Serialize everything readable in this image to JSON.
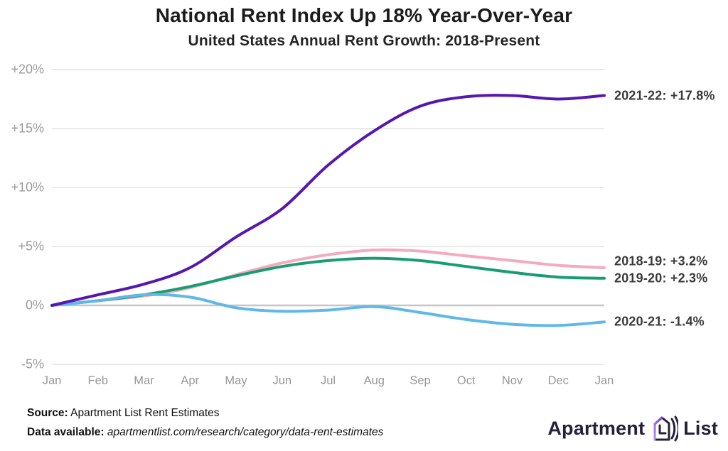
{
  "title": "National Rent Index Up 18% Year-Over-Year",
  "subtitle": "United States Annual Rent Growth: 2018-Present",
  "chart_data": {
    "type": "line",
    "x_tick_labels": [
      "Jan",
      "Feb",
      "Mar",
      "Apr",
      "May",
      "Jun",
      "Jul",
      "Aug",
      "Sep",
      "Oct",
      "Nov",
      "Dec",
      "Jan"
    ],
    "y_tick_labels": [
      "+20%",
      "+15%",
      "+10%",
      "+5%",
      "0%",
      "-5%"
    ],
    "y_tick_values": [
      20,
      15,
      10,
      5,
      0,
      -5
    ],
    "ylim": [
      -5,
      20
    ],
    "grid": "horizontal",
    "legend_position": "right-of-line-ends",
    "series": [
      {
        "name": "2018-19",
        "label": "2018-19: +3.2%",
        "final_value": 3.2,
        "color": "#f3abbe",
        "values": [
          0,
          0.4,
          0.8,
          1.5,
          2.6,
          3.6,
          4.3,
          4.7,
          4.6,
          4.2,
          3.8,
          3.4,
          3.2
        ]
      },
      {
        "name": "2019-20",
        "label": "2019-20: +2.3%",
        "final_value": 2.3,
        "color": "#189c74",
        "values": [
          0,
          0.4,
          0.9,
          1.6,
          2.5,
          3.3,
          3.8,
          4.0,
          3.8,
          3.3,
          2.8,
          2.4,
          2.3
        ]
      },
      {
        "name": "2020-21",
        "label": "2020-21: -1.4%",
        "final_value": -1.4,
        "color": "#5fb8e6",
        "values": [
          0,
          0.4,
          0.9,
          0.7,
          -0.2,
          -0.5,
          -0.4,
          -0.1,
          -0.6,
          -1.2,
          -1.6,
          -1.7,
          -1.4
        ]
      },
      {
        "name": "2021-22",
        "label": "2021-22: +17.8%",
        "final_value": 17.8,
        "color": "#5617b0",
        "values": [
          0,
          0.9,
          1.8,
          3.2,
          5.8,
          8.2,
          11.9,
          14.8,
          16.9,
          17.7,
          17.8,
          17.5,
          17.8
        ]
      }
    ]
  },
  "footer": {
    "source_label": "Source:",
    "source_text": " Apartment List Rent Estimates",
    "data_label": "Data available:",
    "data_text": " apartmentlist.com/research/category/data-rent-estimates"
  },
  "logo": {
    "word1": "Apartment",
    "word2": "List"
  },
  "colors": {
    "grid_line": "#e9e9e9",
    "zero_line": "#c6c6c6",
    "axis_text": "#9b9b9b",
    "series_label_text": "#3a3a3a",
    "logo_dark": "#26203b",
    "logo_purple": "#7c3aed"
  }
}
